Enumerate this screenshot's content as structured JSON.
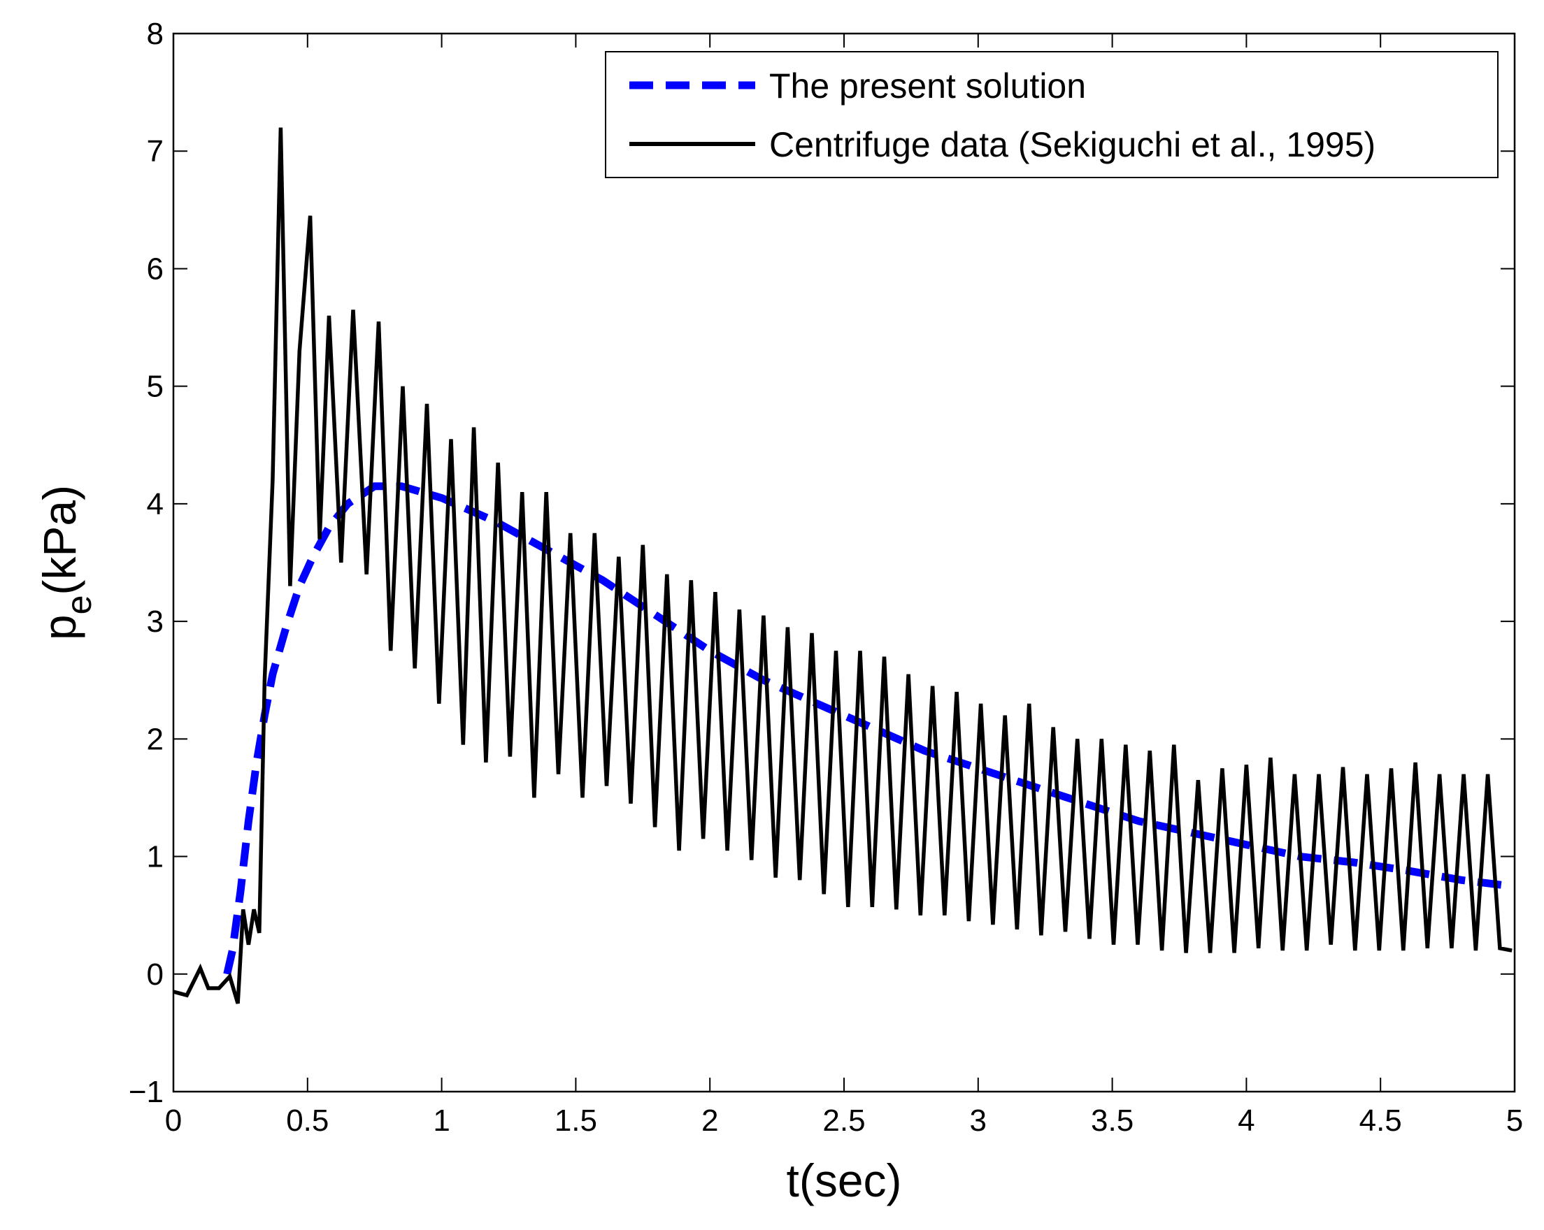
{
  "chart_data": {
    "type": "line",
    "xlabel": "t(sec)",
    "ylabel": {
      "main": "p",
      "subscript": "e",
      "unit": "(kPa)"
    },
    "xlim": [
      0,
      5
    ],
    "ylim": [
      -1,
      8
    ],
    "x_ticks": [
      0,
      0.5,
      1,
      1.5,
      2,
      2.5,
      3,
      3.5,
      4,
      4.5,
      5
    ],
    "x_tick_labels": [
      "0",
      "0.5",
      "1",
      "1.5",
      "2",
      "2.5",
      "3",
      "3.5",
      "4",
      "4.5",
      "5"
    ],
    "y_ticks": [
      -1,
      0,
      1,
      2,
      3,
      4,
      5,
      6,
      7,
      8
    ],
    "y_tick_labels": [
      "−1",
      "0",
      "1",
      "2",
      "3",
      "4",
      "5",
      "6",
      "7",
      "8"
    ],
    "grid": false,
    "legend_position": "top-right",
    "series": [
      {
        "name": "The present solution",
        "color": "#0000ff",
        "style": "dashed",
        "x": [
          0.2,
          0.22,
          0.25,
          0.28,
          0.31,
          0.34,
          0.37,
          0.42,
          0.47,
          0.52,
          0.58,
          0.65,
          0.75,
          0.85,
          1.0,
          1.2,
          1.4,
          1.6,
          1.8,
          2.0,
          2.2,
          2.4,
          2.6,
          2.8,
          3.0,
          3.2,
          3.4,
          3.6,
          3.8,
          4.0,
          4.2,
          4.4,
          4.6,
          4.8,
          4.98
        ],
        "y": [
          0.0,
          0.2,
          0.7,
          1.3,
          1.8,
          2.2,
          2.55,
          2.95,
          3.3,
          3.55,
          3.8,
          4.0,
          4.15,
          4.15,
          4.05,
          3.85,
          3.6,
          3.35,
          3.05,
          2.75,
          2.5,
          2.3,
          2.1,
          1.9,
          1.75,
          1.6,
          1.45,
          1.3,
          1.2,
          1.1,
          1.0,
          0.95,
          0.88,
          0.8,
          0.75
        ]
      },
      {
        "name": "Centrifuge data (Sekiguchi et al., 1995)",
        "color": "#000000",
        "style": "solid",
        "x": [
          0.0,
          0.05,
          0.1,
          0.13,
          0.17,
          0.21,
          0.24,
          0.26,
          0.28,
          0.3,
          0.32,
          0.34,
          0.37,
          0.4,
          0.435,
          0.47,
          0.51,
          0.545,
          0.58,
          0.625,
          0.67,
          0.72,
          0.765,
          0.81,
          0.855,
          0.9,
          0.945,
          0.99,
          1.035,
          1.08,
          1.12,
          1.165,
          1.21,
          1.255,
          1.3,
          1.345,
          1.39,
          1.435,
          1.48,
          1.525,
          1.57,
          1.615,
          1.66,
          1.705,
          1.75,
          1.795,
          1.84,
          1.885,
          1.93,
          1.975,
          2.02,
          2.065,
          2.11,
          2.155,
          2.2,
          2.245,
          2.29,
          2.335,
          2.38,
          2.425,
          2.47,
          2.515,
          2.56,
          2.605,
          2.65,
          2.695,
          2.74,
          2.785,
          2.83,
          2.875,
          2.92,
          2.965,
          3.01,
          3.055,
          3.1,
          3.145,
          3.19,
          3.235,
          3.28,
          3.325,
          3.37,
          3.415,
          3.46,
          3.505,
          3.55,
          3.595,
          3.64,
          3.685,
          3.73,
          3.775,
          3.82,
          3.865,
          3.91,
          3.955,
          4.0,
          4.045,
          4.09,
          4.135,
          4.18,
          4.225,
          4.27,
          4.315,
          4.36,
          4.405,
          4.45,
          4.495,
          4.54,
          4.585,
          4.63,
          4.675,
          4.72,
          4.765,
          4.81,
          4.855,
          4.9,
          4.945,
          4.99
        ],
        "y": [
          -0.15,
          -0.18,
          0.05,
          -0.12,
          -0.12,
          -0.02,
          -0.25,
          0.55,
          0.25,
          0.55,
          0.35,
          2.5,
          4.2,
          7.2,
          3.3,
          5.3,
          6.45,
          3.7,
          5.6,
          3.5,
          5.65,
          3.4,
          5.55,
          2.75,
          5.0,
          2.6,
          4.85,
          2.3,
          4.55,
          1.95,
          4.65,
          1.8,
          4.35,
          1.85,
          4.1,
          1.5,
          4.1,
          1.7,
          3.75,
          1.5,
          3.75,
          1.6,
          3.55,
          1.45,
          3.65,
          1.25,
          3.4,
          1.05,
          3.35,
          1.15,
          3.25,
          1.05,
          3.1,
          0.97,
          3.05,
          0.82,
          2.95,
          0.8,
          2.9,
          0.68,
          2.75,
          0.57,
          2.75,
          0.57,
          2.7,
          0.55,
          2.55,
          0.5,
          2.45,
          0.5,
          2.4,
          0.45,
          2.3,
          0.42,
          2.2,
          0.38,
          2.3,
          0.33,
          2.1,
          0.36,
          2.0,
          0.3,
          2.0,
          0.25,
          1.95,
          0.25,
          1.9,
          0.2,
          1.95,
          0.18,
          1.65,
          0.18,
          1.75,
          0.18,
          1.78,
          0.22,
          1.84,
          0.2,
          1.7,
          0.2,
          1.7,
          0.25,
          1.76,
          0.2,
          1.7,
          0.2,
          1.75,
          0.2,
          1.8,
          0.22,
          1.7,
          0.22,
          1.7,
          0.2,
          1.7,
          0.22,
          0.2
        ]
      }
    ]
  }
}
